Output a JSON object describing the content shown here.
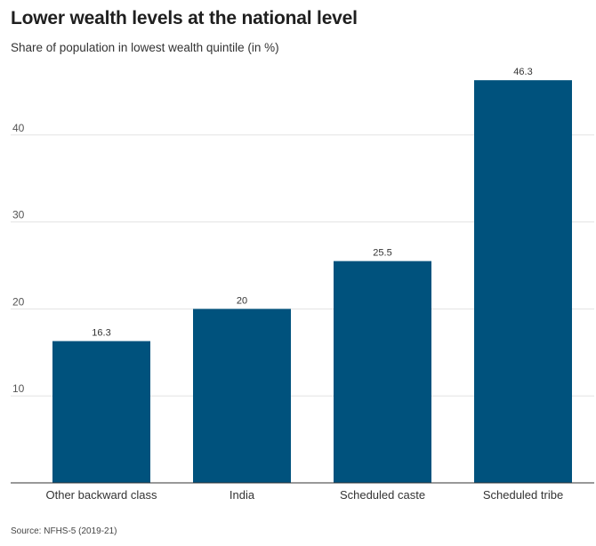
{
  "chart_data": {
    "type": "bar",
    "title": "Lower wealth levels at the national level",
    "subtitle": "Share of population in lowest wealth quintile (in %)",
    "categories": [
      "Other backward class",
      "India",
      "Scheduled caste",
      "Scheduled tribe"
    ],
    "values": [
      16.3,
      20,
      25.5,
      46.3
    ],
    "data_labels": [
      "16.3",
      "20",
      "25.5",
      "46.3"
    ],
    "yticks": [
      10,
      20,
      30,
      40
    ],
    "ylim": [
      0,
      48.5
    ],
    "grid": true,
    "bar_color": "#00527d",
    "source": "Source: NFHS-5 (2019-21)"
  }
}
